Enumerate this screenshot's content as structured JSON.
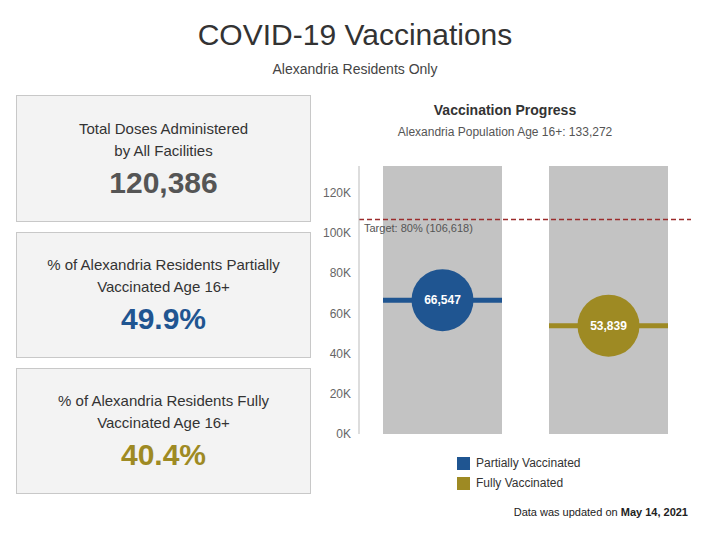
{
  "header": {
    "title": "COVID-19 Vaccinations",
    "subtitle": "Alexandria Residents Only"
  },
  "cards": [
    {
      "label": [
        "Total Doses Administered",
        "by All Facilities"
      ],
      "value": "120,386",
      "color": "#555555"
    },
    {
      "label": [
        "% of Alexandria Residents Partially",
        "Vaccinated Age 16+"
      ],
      "value": "49.9%",
      "color": "#1f5591"
    },
    {
      "label": [
        "% of Alexandria Residents Fully",
        "Vaccinated Age 16+"
      ],
      "value": "40.4%",
      "color": "#9e8a23"
    }
  ],
  "chart_data": {
    "type": "dot",
    "title": "Vaccination Progress",
    "subtitle": "Alexandria Population Age 16+: 133,272",
    "categories": [
      null,
      null
    ],
    "population": 133272,
    "population_color": "#c3c3c3",
    "series": [
      {
        "name": "Partially Vaccinated",
        "color": "#1f5591",
        "values": [
          66547,
          null
        ],
        "value_labels": [
          "66,547",
          null
        ]
      },
      {
        "name": "Fully Vaccinated",
        "color": "#9e8a23",
        "values": [
          null,
          53839
        ],
        "value_labels": [
          null,
          "53,839"
        ]
      }
    ],
    "reference_line": {
      "value": 106618,
      "label": "Target: 80% (106,618)",
      "color": "#9b2c2c"
    },
    "ylim": [
      0,
      133272
    ],
    "yticks": [
      {
        "value": 0,
        "label": "0K"
      },
      {
        "value": 20000,
        "label": "20K"
      },
      {
        "value": 40000,
        "label": "40K"
      },
      {
        "value": 60000,
        "label": "60K"
      },
      {
        "value": 80000,
        "label": "80K"
      },
      {
        "value": 100000,
        "label": "100K"
      },
      {
        "value": 120000,
        "label": "120K"
      }
    ],
    "data_labels": true,
    "grid": false
  },
  "footer": {
    "text": "Data was updated on",
    "date": "May 14, 2021"
  }
}
